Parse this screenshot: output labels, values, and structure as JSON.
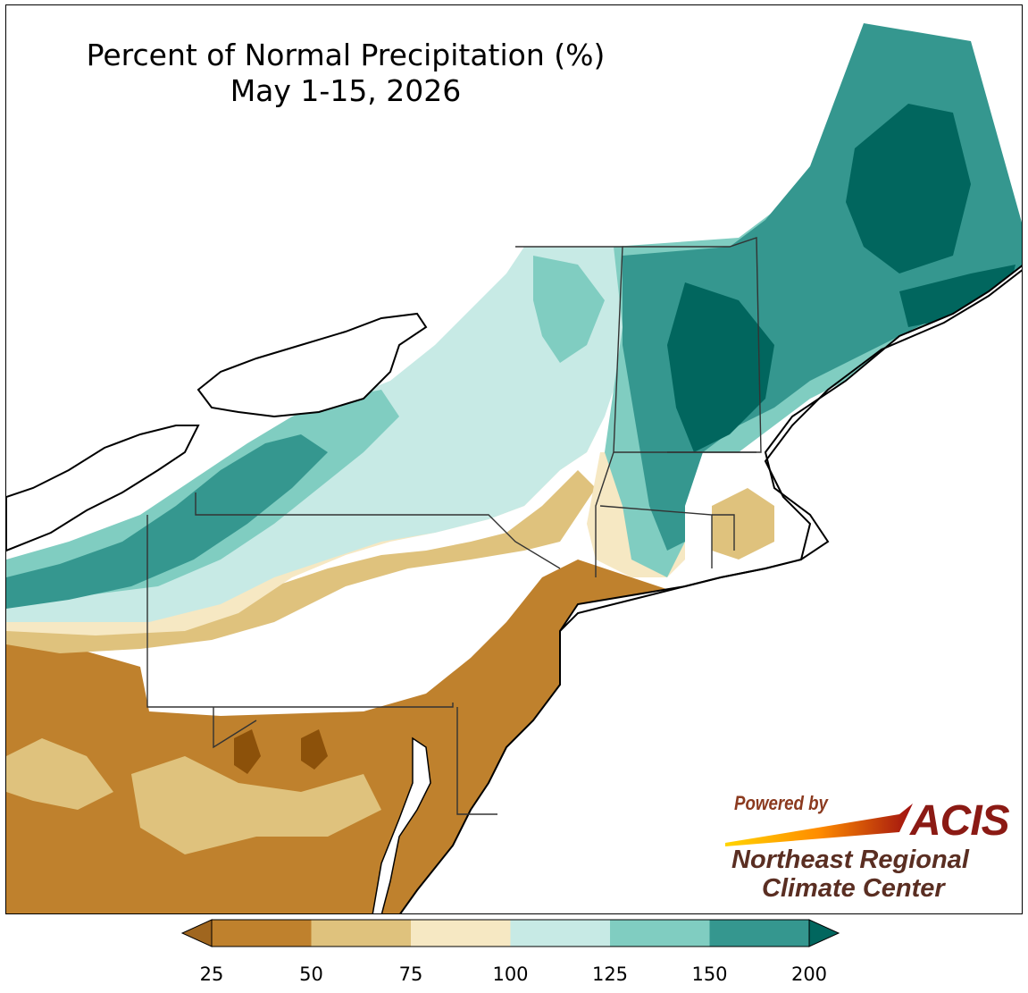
{
  "title": {
    "line1": "Percent of Normal Precipitation (%)",
    "line2": "May 1-15, 2026"
  },
  "credit": {
    "powered_by": "Powered by",
    "acis": "ACIS",
    "org_line1": "Northeast Regional",
    "org_line2": "Climate Center"
  },
  "legend": {
    "bins": [
      {
        "from": 25,
        "to": 50,
        "color": "#bf812d"
      },
      {
        "from": 50,
        "to": 75,
        "color": "#dfc27d"
      },
      {
        "from": 75,
        "to": 100,
        "color": "#f6e8c3"
      },
      {
        "from": 100,
        "to": 125,
        "color": "#c7eae5"
      },
      {
        "from": 125,
        "to": 150,
        "color": "#80cdc1"
      },
      {
        "from": 150,
        "to": 200,
        "color": "#35978f"
      }
    ],
    "under_color": "#a0661f",
    "over_color": "#01665e",
    "ticks": [
      "25",
      "50",
      "75",
      "100",
      "125",
      "150",
      "200"
    ]
  }
}
